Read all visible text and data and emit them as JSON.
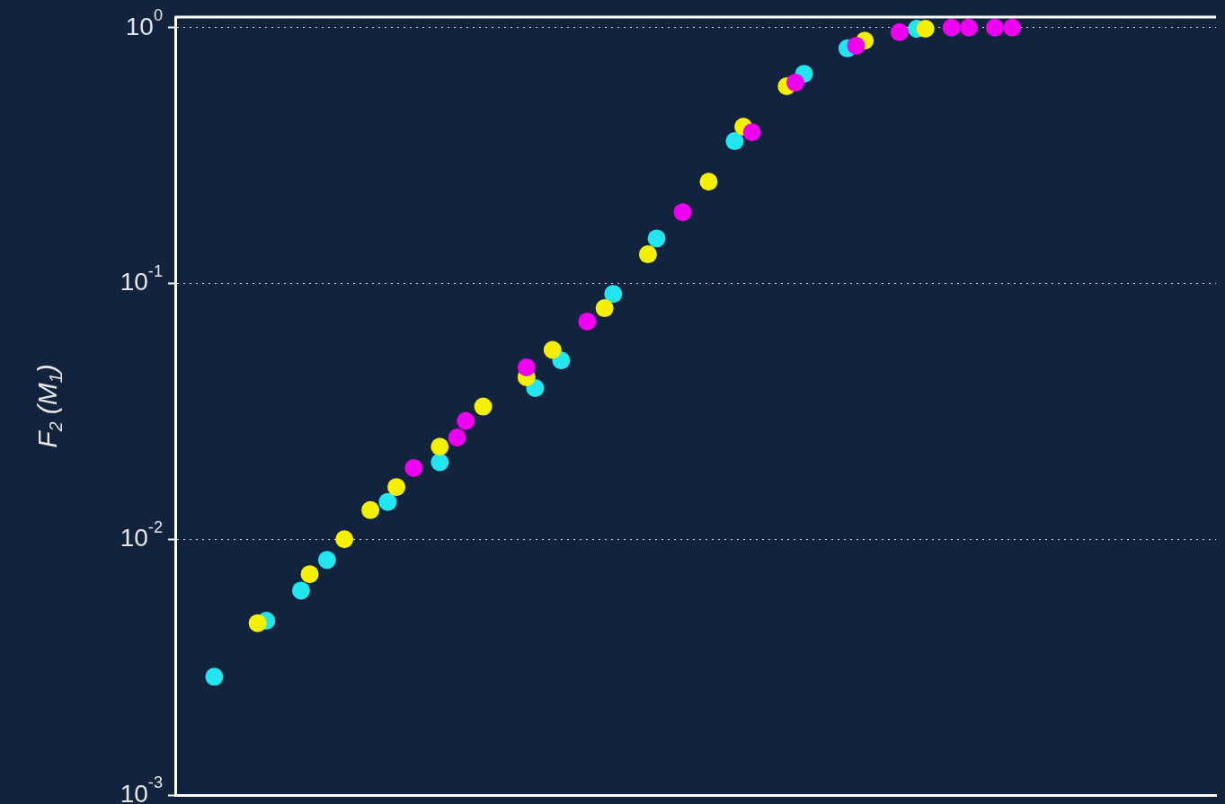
{
  "chart_data": {
    "type": "scatter",
    "ylabel": "F$_{2}$ (M$_{1}$)",
    "log": "y",
    "grid": "y",
    "marker": "circle",
    "tick_labels": "y",
    "ylim": [
      0.001,
      1.1
    ],
    "yticks": [
      {
        "value": 0.001,
        "label": "10$^{-3}$"
      },
      {
        "value": 0.01,
        "label": "10$^{-2}$"
      },
      {
        "value": 0.1,
        "label": "10$^{-1}$"
      },
      {
        "value": 1,
        "label": "10$^{0}$"
      }
    ],
    "categories": [
      null,
      null,
      null,
      null,
      null,
      null,
      null,
      null,
      null,
      null,
      null,
      null,
      null,
      null,
      null,
      null,
      null,
      null,
      null,
      null,
      null,
      null,
      null,
      null,
      null,
      null,
      null,
      null,
      null,
      null,
      null,
      null,
      null,
      null,
      null,
      null,
      null,
      null,
      null,
      null,
      null,
      null,
      null,
      null,
      null,
      null,
      null,
      null,
      null,
      null,
      null,
      null,
      null,
      null,
      null,
      null,
      null,
      null,
      null,
      null,
      null,
      null,
      null,
      null,
      null,
      null,
      null,
      null,
      null,
      null,
      null,
      null,
      null,
      null,
      null,
      null,
      null,
      null,
      null,
      null,
      null,
      null,
      null,
      null,
      null,
      null,
      null,
      null,
      null,
      null,
      null,
      null,
      null,
      null,
      null,
      null,
      null,
      null,
      null,
      null,
      null,
      null,
      null,
      null,
      null,
      null,
      null,
      null,
      null,
      null,
      null,
      null,
      null,
      null,
      null,
      null,
      null,
      null,
      null,
      null
    ],
    "series": [
      {
        "color": "#22e5f0",
        "values": [
          null,
          null,
          null,
          null,
          0.0029,
          null,
          null,
          null,
          null,
          null,
          0.0048,
          null,
          null,
          null,
          0.0063,
          null,
          null,
          0.0083,
          null,
          null,
          null,
          null,
          null,
          null,
          0.014,
          null,
          null,
          null,
          null,
          null,
          0.02,
          null,
          null,
          null,
          null,
          null,
          null,
          null,
          null,
          null,
          null,
          0.039,
          null,
          null,
          0.05,
          null,
          null,
          null,
          null,
          null,
          0.091,
          null,
          null,
          null,
          null,
          0.15,
          null,
          null,
          null,
          null,
          null,
          null,
          null,
          null,
          0.36,
          null,
          null,
          null,
          null,
          null,
          null,
          null,
          0.66,
          null,
          null,
          null,
          null,
          0.83,
          null,
          null,
          null,
          null,
          null,
          null,
          null,
          0.99,
          null,
          null,
          null,
          null,
          null,
          null,
          null,
          null,
          null,
          null,
          null,
          null,
          null,
          null,
          null,
          null,
          null,
          null,
          null,
          null,
          null,
          null,
          null,
          null,
          null,
          null,
          null,
          null,
          null,
          null,
          null,
          null,
          null,
          null
        ]
      },
      {
        "color": "#f5f000",
        "values": [
          null,
          null,
          null,
          null,
          null,
          null,
          null,
          null,
          null,
          0.0047,
          null,
          null,
          null,
          null,
          null,
          0.0073,
          null,
          null,
          null,
          0.01,
          null,
          null,
          0.013,
          null,
          null,
          0.016,
          null,
          null,
          null,
          null,
          0.023,
          null,
          null,
          null,
          null,
          0.033,
          null,
          null,
          null,
          null,
          0.043,
          null,
          null,
          0.055,
          null,
          null,
          null,
          null,
          null,
          0.08,
          null,
          null,
          null,
          null,
          0.13,
          null,
          null,
          null,
          null,
          null,
          null,
          0.25,
          null,
          null,
          null,
          0.41,
          null,
          null,
          null,
          null,
          0.59,
          null,
          null,
          null,
          null,
          null,
          null,
          null,
          null,
          0.89,
          null,
          null,
          null,
          null,
          null,
          null,
          0.99,
          null,
          null,
          null,
          null,
          null,
          null,
          null,
          null,
          null,
          null,
          null,
          null,
          null,
          null,
          null,
          null,
          null,
          null,
          null,
          null,
          null,
          null,
          null,
          null,
          null,
          null,
          null,
          null,
          null,
          null,
          null,
          null,
          null
        ]
      },
      {
        "color": "#f000f0",
        "values": [
          null,
          null,
          null,
          null,
          null,
          null,
          null,
          null,
          null,
          null,
          null,
          null,
          null,
          null,
          null,
          null,
          null,
          null,
          null,
          null,
          null,
          null,
          null,
          null,
          null,
          null,
          null,
          0.019,
          null,
          null,
          null,
          null,
          0.025,
          0.029,
          null,
          null,
          null,
          null,
          null,
          null,
          0.047,
          null,
          null,
          null,
          null,
          null,
          null,
          0.071,
          null,
          null,
          null,
          null,
          null,
          null,
          null,
          null,
          null,
          null,
          0.19,
          null,
          null,
          null,
          null,
          null,
          null,
          null,
          0.39,
          null,
          null,
          null,
          null,
          0.61,
          null,
          null,
          null,
          null,
          null,
          null,
          0.85,
          null,
          null,
          null,
          null,
          0.96,
          null,
          null,
          null,
          null,
          null,
          1,
          null,
          1,
          null,
          null,
          1,
          null,
          1,
          null,
          null,
          null,
          null,
          null,
          null,
          null,
          null,
          null,
          null,
          null,
          null,
          null,
          null,
          null,
          null,
          null,
          null,
          null,
          null,
          null,
          null,
          null
        ]
      }
    ]
  }
}
